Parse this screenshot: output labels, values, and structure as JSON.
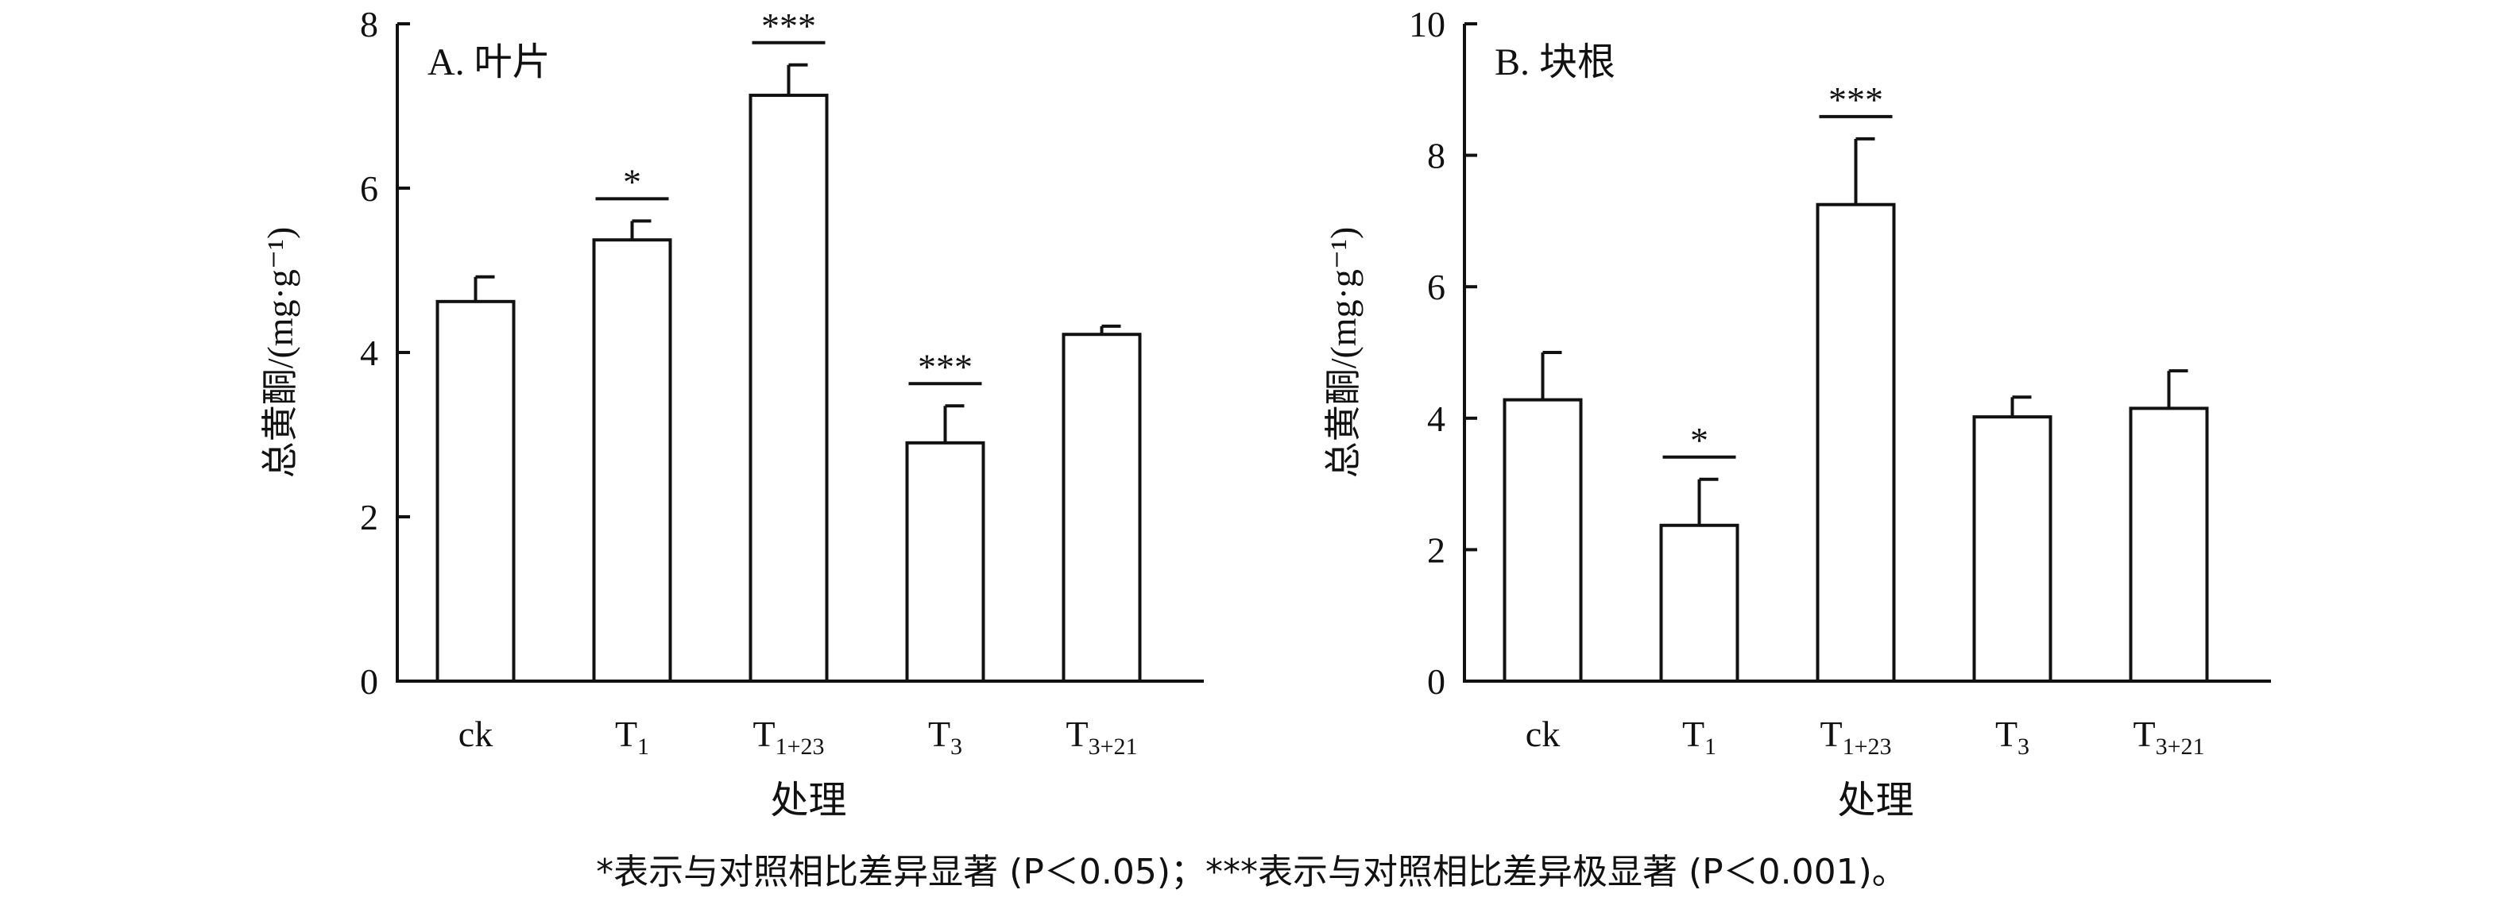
{
  "chart_data": [
    {
      "type": "bar",
      "panel_label": "A. 叶片",
      "ylabel": "总黄酮/(mg·g⁻¹)",
      "xlabel": "处理",
      "ylim": [
        0,
        8
      ],
      "yticks": [
        0,
        2,
        4,
        6,
        8
      ],
      "categories": [
        {
          "main": "ck",
          "sub": ""
        },
        {
          "main": "T",
          "sub": "1"
        },
        {
          "main": "T",
          "sub": "1+23"
        },
        {
          "main": "T",
          "sub": "3"
        },
        {
          "main": "T",
          "sub": "3+21"
        }
      ],
      "values": [
        4.62,
        5.37,
        7.13,
        2.9,
        4.22
      ],
      "errors": [
        0.3,
        0.23,
        0.37,
        0.45,
        0.1
      ],
      "significance": [
        "",
        "*",
        "***",
        "***",
        ""
      ]
    },
    {
      "type": "bar",
      "panel_label": "B. 块根",
      "ylabel": "总黄酮/(mg·g⁻¹)",
      "xlabel": "处理",
      "ylim": [
        0,
        10
      ],
      "yticks": [
        0,
        2,
        4,
        6,
        8,
        10
      ],
      "categories": [
        {
          "main": "ck",
          "sub": ""
        },
        {
          "main": "T",
          "sub": "1"
        },
        {
          "main": "T",
          "sub": "1+23"
        },
        {
          "main": "T",
          "sub": "3"
        },
        {
          "main": "T",
          "sub": "3+21"
        }
      ],
      "values": [
        4.28,
        2.37,
        7.25,
        4.02,
        4.15
      ],
      "errors": [
        0.72,
        0.7,
        1.0,
        0.3,
        0.57
      ],
      "significance": [
        "",
        "*",
        "***",
        "",
        ""
      ]
    }
  ],
  "footnote": "*表示与对照相比差异显著 (P＜0.05)；***表示与对照相比差异极显著 (P＜0.001)。"
}
